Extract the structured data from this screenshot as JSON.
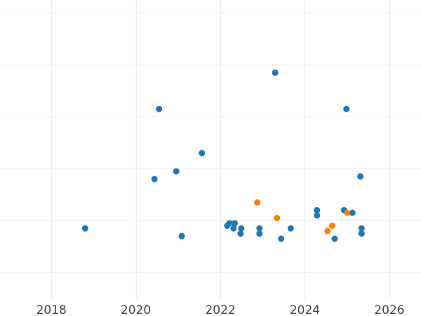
{
  "chart_data": {
    "type": "scatter",
    "title": "",
    "xlabel": "",
    "ylabel": "",
    "x_axis": "date",
    "xlim": [
      "2016-10-14",
      "2026-10-01"
    ],
    "ylim": [
      0,
      11.5
    ],
    "x_ticks": [
      "2018",
      "2020",
      "2022",
      "2024",
      "2026"
    ],
    "x_tick_dates": [
      "2018-01-01",
      "2020-01-01",
      "2022-01-01",
      "2024-01-01",
      "2026-01-01"
    ],
    "y_gridlines": [
      1,
      3,
      5,
      7,
      9,
      11
    ],
    "grid": true,
    "legend": "none",
    "series": [
      {
        "color": "#1f77b4",
        "points": [
          {
            "x": "2018-10-20",
            "y": 2.7
          },
          {
            "x": "2020-06-10",
            "y": 4.6
          },
          {
            "x": "2020-07-20",
            "y": 7.3
          },
          {
            "x": "2020-12-15",
            "y": 4.9
          },
          {
            "x": "2021-02-01",
            "y": 2.4
          },
          {
            "x": "2021-07-25",
            "y": 5.6
          },
          {
            "x": "2022-03-01",
            "y": 2.8
          },
          {
            "x": "2022-03-20",
            "y": 2.9
          },
          {
            "x": "2022-04-25",
            "y": 2.7
          },
          {
            "x": "2022-05-05",
            "y": 2.9
          },
          {
            "x": "2022-06-25",
            "y": 2.5
          },
          {
            "x": "2022-07-01",
            "y": 2.7
          },
          {
            "x": "2022-12-05",
            "y": 2.5
          },
          {
            "x": "2022-12-05",
            "y": 2.7
          },
          {
            "x": "2023-04-20",
            "y": 8.7
          },
          {
            "x": "2023-06-10",
            "y": 2.3
          },
          {
            "x": "2023-09-01",
            "y": 2.7
          },
          {
            "x": "2024-04-15",
            "y": 3.2
          },
          {
            "x": "2024-04-15",
            "y": 3.4
          },
          {
            "x": "2024-09-15",
            "y": 2.3
          },
          {
            "x": "2024-12-05",
            "y": 3.4
          },
          {
            "x": "2024-12-25",
            "y": 7.3
          },
          {
            "x": "2025-02-15",
            "y": 3.3
          },
          {
            "x": "2025-04-25",
            "y": 4.7
          },
          {
            "x": "2025-05-05",
            "y": 2.5
          },
          {
            "x": "2025-05-05",
            "y": 2.7
          }
        ]
      },
      {
        "color": "#ff7f0e",
        "points": [
          {
            "x": "2022-11-15",
            "y": 3.7
          },
          {
            "x": "2023-05-05",
            "y": 3.1
          },
          {
            "x": "2024-07-15",
            "y": 2.6
          },
          {
            "x": "2024-08-25",
            "y": 2.8
          },
          {
            "x": "2025-01-01",
            "y": 3.3
          }
        ]
      }
    ]
  }
}
